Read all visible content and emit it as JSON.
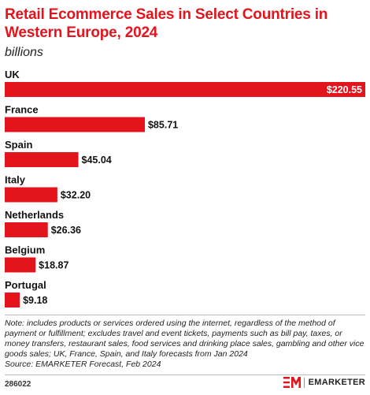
{
  "title": "Retail Ecommerce Sales in Select Countries in Western Europe, 2024",
  "subtitle": "billions",
  "accent_color": "#e3141c",
  "chart_data": {
    "type": "bar",
    "orientation": "horizontal",
    "categories": [
      "UK",
      "France",
      "Spain",
      "Italy",
      "Netherlands",
      "Belgium",
      "Portugal"
    ],
    "values": [
      220.55,
      85.71,
      45.04,
      32.2,
      26.36,
      18.87,
      9.18
    ],
    "value_labels": [
      "$220.55",
      "$85.71",
      "$45.04",
      "$32.20",
      "$26.36",
      "$18.87",
      "$9.18"
    ],
    "title": "Retail Ecommerce Sales in Select Countries in Western Europe, 2024",
    "subtitle": "billions",
    "xlim": [
      0,
      220.55
    ],
    "grid": false,
    "legend": "none",
    "bar_color": "#e3141c"
  },
  "note": "Note: includes products or services ordered using the internet, regardless of the method of payment or fulfillment; excludes travel and event tickets, payments such as bill pay, taxes, or money transfers, restaurant sales, food services and drinking place sales, gambling and other vice goods sales; UK, France, Spain, and Italy forecasts from Jan 2024",
  "source": "Source: EMARKETER Forecast, Feb 2024",
  "footer": {
    "chart_id": "286022",
    "brand": "EMARKETER",
    "logo_icon": "em-logo-icon"
  }
}
